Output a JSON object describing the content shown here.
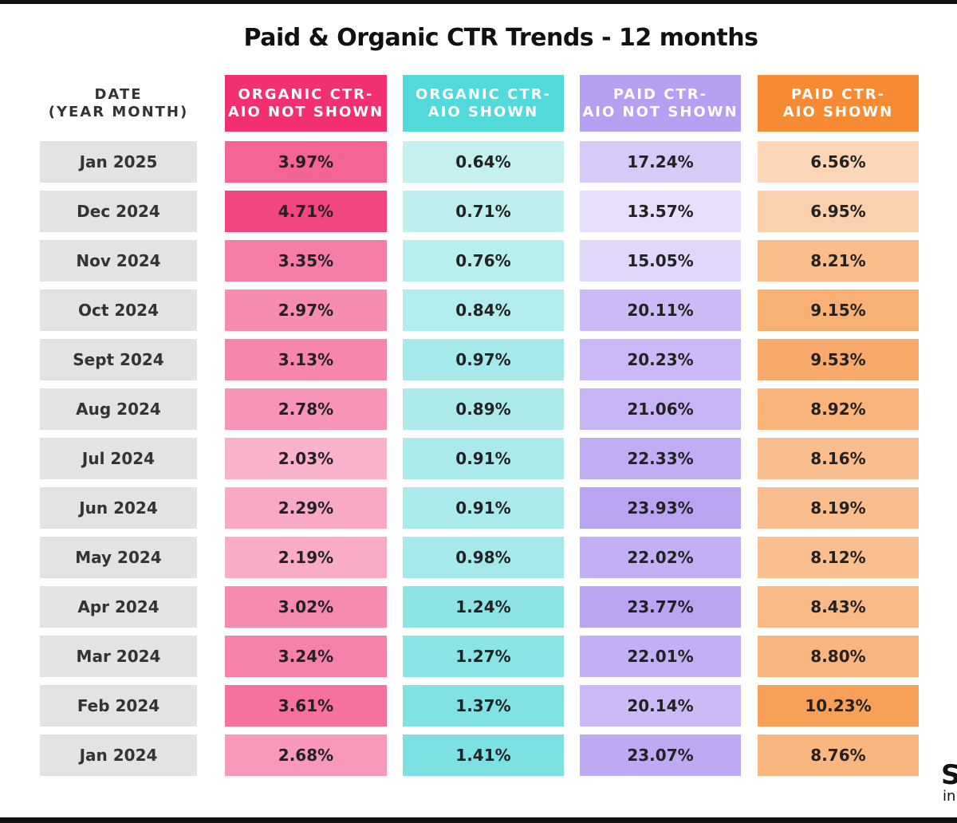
{
  "header": {
    "title": "Paid & Organic CTR Trends - 12 months"
  },
  "table": {
    "columns": [
      [
        "DATE",
        "(YEAR MONTH)"
      ],
      [
        "ORGANIC CTR-",
        "AIO NOT SHOWN"
      ],
      [
        "ORGANIC CTR-",
        "AIO SHOWN"
      ],
      [
        "PAID CTR-",
        "AIO NOT SHOWN"
      ],
      [
        "PAID CTR-",
        "AIO SHOWN"
      ]
    ],
    "rows": [
      [
        "Jan 2025",
        "3.97%",
        "0.64%",
        "17.24%",
        "6.56%"
      ],
      [
        "Dec 2024",
        "4.71%",
        "0.71%",
        "13.57%",
        "6.95%"
      ],
      [
        "Nov 2024",
        "3.35%",
        "0.76%",
        "15.05%",
        "8.21%"
      ],
      [
        "Oct 2024",
        "2.97%",
        "0.84%",
        "20.11%",
        "9.15%"
      ],
      [
        "Sept 2024",
        "3.13%",
        "0.97%",
        "20.23%",
        "9.53%"
      ],
      [
        "Aug 2024",
        "2.78%",
        "0.89%",
        "21.06%",
        "8.92%"
      ],
      [
        "Jul 2024",
        "2.03%",
        "0.91%",
        "22.33%",
        "8.16%"
      ],
      [
        "Jun 2024",
        "2.29%",
        "0.91%",
        "23.93%",
        "8.19%"
      ],
      [
        "May 2024",
        "2.19%",
        "0.98%",
        "22.02%",
        "8.12%"
      ],
      [
        "Apr 2024",
        "3.02%",
        "1.24%",
        "23.77%",
        "8.43%"
      ],
      [
        "Mar 2024",
        "3.24%",
        "1.27%",
        "22.01%",
        "8.80%"
      ],
      [
        "Feb 2024",
        "3.61%",
        "1.37%",
        "20.14%",
        "10.23%"
      ],
      [
        "Jan 2024",
        "2.68%",
        "1.41%",
        "23.07%",
        "8.76%"
      ]
    ]
  },
  "logo": {
    "mark": "S",
    "text": "in"
  }
}
